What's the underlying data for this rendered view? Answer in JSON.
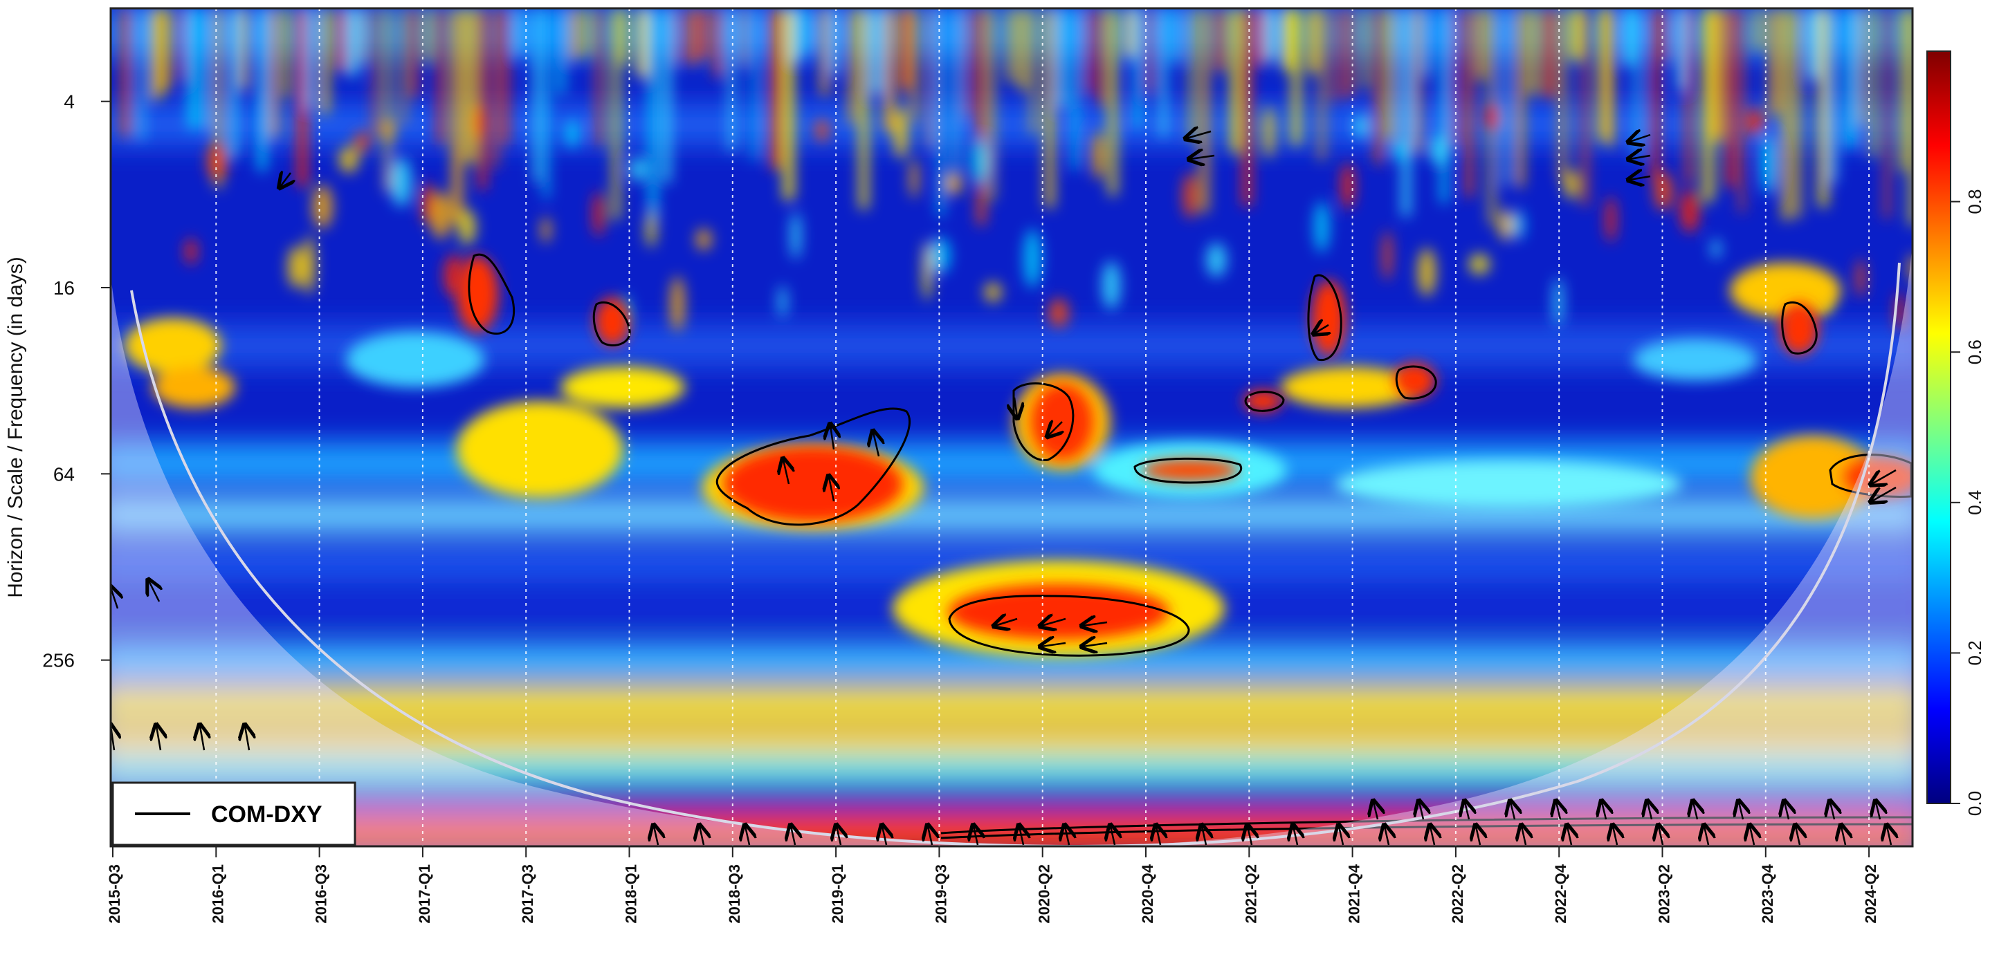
{
  "chart_data": {
    "type": "heatmap",
    "subtype": "wavelet-coherence",
    "title": "",
    "xlabel": "",
    "ylabel": "Horizon / Scale / Frequency (in days)",
    "x_tick_labels": [
      "2015-Q3",
      "2016-Q1",
      "2016-Q3",
      "2017-Q1",
      "2017-Q3",
      "2018-Q1",
      "2018-Q3",
      "2019-Q1",
      "2019-Q3",
      "2020-Q2",
      "2020-Q4",
      "2021-Q2",
      "2021-Q4",
      "2022-Q2",
      "2022-Q4",
      "2023-Q2",
      "2023-Q4",
      "2024-Q2"
    ],
    "y_scale": "log2",
    "y_tick_values": [
      4,
      16,
      64,
      256
    ],
    "y_tick_labels": [
      "4",
      "16",
      "64",
      "256"
    ],
    "y_range": [
      2,
      1024
    ],
    "y_inverted": true,
    "colorbar": {
      "range": [
        0,
        1
      ],
      "tick_values": [
        0.0,
        0.2,
        0.4,
        0.6,
        0.8
      ],
      "tick_labels": [
        "0.0",
        "0.2",
        "0.4",
        "0.6",
        "0.8"
      ],
      "palette": [
        "#00007f",
        "#0000ff",
        "#007fff",
        "#00ffff",
        "#7fff7f",
        "#ffff00",
        "#ff7f00",
        "#ff0000",
        "#7f0000"
      ]
    },
    "legend": {
      "label": "COM-DXY",
      "placement": "bottom-left"
    },
    "grid": {
      "vertical_dotted": true
    },
    "cone_of_influence": true,
    "significant_regions": [
      {
        "x_start": "2018-Q3",
        "x_end": "2019-Q2",
        "scale": 64,
        "coherence": 0.9
      },
      {
        "x_start": "2019-Q4",
        "x_end": "2020-Q3",
        "scale": 160,
        "coherence": 0.9
      },
      {
        "x_start": "2020-Q1",
        "x_end": "2020-Q2",
        "scale": 40,
        "coherence": 0.85
      },
      {
        "x_start": "2020-Q4",
        "x_end": "2021-Q1",
        "scale": 60,
        "coherence": 0.8
      },
      {
        "x_start": "2024-Q2",
        "x_end": "2024-Q3",
        "scale": 60,
        "coherence": 0.85
      },
      {
        "x_start": "2019-Q3",
        "x_end": "2024-Q3",
        "scale": 900,
        "coherence": 0.95
      }
    ]
  }
}
